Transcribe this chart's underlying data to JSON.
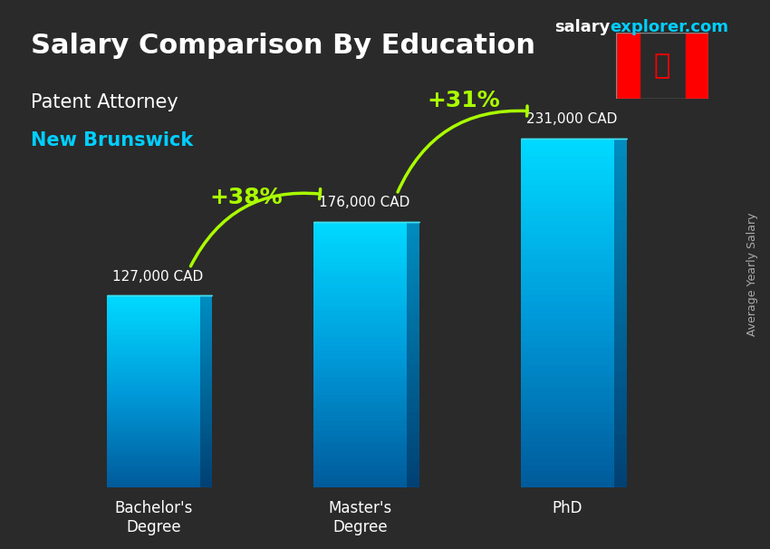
{
  "title": "Salary Comparison By Education",
  "subtitle1": "Patent Attorney",
  "subtitle2": "New Brunswick",
  "categories": [
    "Bachelor's\nDegree",
    "Master's\nDegree",
    "PhD"
  ],
  "values": [
    127000,
    176000,
    231000
  ],
  "value_labels": [
    "127,000 CAD",
    "176,000 CAD",
    "231,000 CAD"
  ],
  "bar_color_top": "#00cfff",
  "bar_color_mid": "#0099cc",
  "bar_color_dark": "#006699",
  "pct_labels": [
    "+38%",
    "+31%"
  ],
  "pct_color": "#aaff00",
  "background_color": "#2a2a2a",
  "title_color": "#ffffff",
  "subtitle1_color": "#ffffff",
  "subtitle2_color": "#00cfff",
  "value_color": "#ffffff",
  "xlabel_color": "#ffffff",
  "ylabel_text": "Average Yearly Salary",
  "ylabel_color": "#aaaaaa",
  "site_text": "salaryexplorer.com",
  "site_color_salary": "#ffffff",
  "site_color_explorer": "#00cfff",
  "ylim": [
    0,
    270000
  ],
  "bar_width": 0.45
}
